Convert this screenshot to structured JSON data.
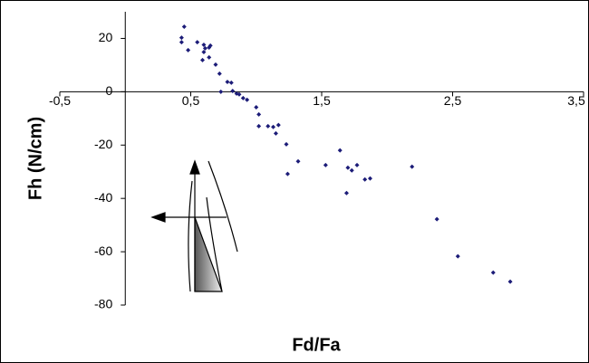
{
  "chart_data": {
    "type": "scatter",
    "x_label": "Fd/Fa",
    "y_label": "Fh (N/cm)",
    "color": "#1c1c78",
    "x": [
      0.45,
      0.43,
      0.43,
      0.48,
      0.55,
      0.6,
      0.61,
      0.64,
      0.65,
      0.6,
      0.59,
      0.64,
      0.69,
      0.72,
      0.73,
      0.78,
      0.81,
      0.82,
      0.85,
      0.87,
      0.9,
      0.93,
      1.0,
      1.02,
      1.02,
      1.09,
      1.13,
      1.17,
      1.15,
      1.23,
      1.24,
      1.32,
      1.53,
      1.64,
      1.7,
      1.69,
      1.73,
      1.77,
      1.83,
      1.87,
      2.19,
      2.38,
      2.54,
      2.81,
      2.94
    ],
    "values": [
      24.4,
      20.3,
      18.6,
      15.6,
      18.6,
      17.6,
      16.3,
      16.6,
      17.3,
      14.9,
      11.9,
      12.9,
      10.2,
      6.8,
      0,
      3.7,
      3.4,
      0.3,
      -0.7,
      -1,
      -2.4,
      -3,
      -5.8,
      -8.5,
      -12.9,
      -12.9,
      -13.2,
      -12.5,
      -15.6,
      -19.7,
      -30.8,
      -26.1,
      -27.5,
      -22,
      -28.5,
      -38,
      -29.5,
      -27.5,
      -32.9,
      -32.5,
      -28.1,
      -47.8,
      -61.7,
      -67.8,
      -71.2
    ],
    "xlim": [
      -0.5,
      3.5
    ],
    "ylim": [
      -80,
      30
    ],
    "xticks": [
      {
        "value": -0.5,
        "label": "-0,5"
      },
      {
        "value": 0.5,
        "label": "0,5"
      },
      {
        "value": 1.5,
        "label": "1,5"
      },
      {
        "value": 2.5,
        "label": "2,5"
      },
      {
        "value": 3.5,
        "label": "3,5"
      }
    ],
    "yticks": [
      20,
      0,
      -20,
      -40,
      -60,
      -80
    ]
  }
}
